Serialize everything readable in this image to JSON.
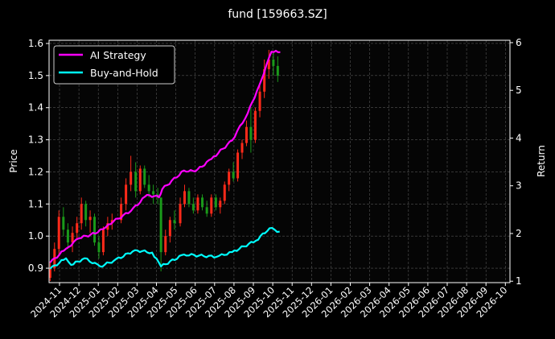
{
  "chart_data": {
    "type": "line",
    "title": "fund [159663.SZ]",
    "ylabel": "Price",
    "ylabel_right": "Return",
    "ylim": [
      0.855,
      1.61
    ],
    "ylim_right": [
      0.97,
      6.05
    ],
    "yticks": [
      "0.9",
      "1.0",
      "1.1",
      "1.2",
      "1.3",
      "1.4",
      "1.5",
      "1.6"
    ],
    "yticks_right": [
      "1",
      "2",
      "3",
      "4",
      "5",
      "6"
    ],
    "xticks": [
      "2024-11",
      "2024-12",
      "2025-01",
      "2025-02",
      "2025-03",
      "2025-04",
      "2025-05",
      "2025-06",
      "2025-07",
      "2025-08",
      "2025-09",
      "2025-10",
      "2025-11",
      "2025-12",
      "2026-01",
      "2026-02",
      "2026-03",
      "2026-04",
      "2026-05",
      "2026-06",
      "2026-07",
      "2026-08",
      "2026-09",
      "2026-10"
    ],
    "grid": true,
    "legend_position": "top-left",
    "colors": {
      "up": "#ff2a1a",
      "down": "#1a9a1a",
      "strategy": "#ff00ff",
      "buy_hold": "#00ffff",
      "grid": "#555555"
    },
    "candles": [
      [
        "2024-10-17",
        0.87,
        0.92,
        0.86,
        0.9
      ],
      [
        "2024-10-24",
        0.9,
        0.98,
        0.89,
        0.96
      ],
      [
        "2024-10-31",
        0.96,
        1.08,
        0.94,
        1.06
      ],
      [
        "2024-11-07",
        1.06,
        1.09,
        1.0,
        1.02
      ],
      [
        "2024-11-14",
        1.02,
        1.04,
        0.96,
        0.98
      ],
      [
        "2024-11-21",
        0.98,
        1.03,
        0.95,
        1.01
      ],
      [
        "2024-11-28",
        1.01,
        1.06,
        0.99,
        1.04
      ],
      [
        "2024-12-05",
        1.04,
        1.12,
        1.02,
        1.1
      ],
      [
        "2024-12-12",
        1.1,
        1.11,
        1.03,
        1.05
      ],
      [
        "2024-12-19",
        1.05,
        1.08,
        1.01,
        1.06
      ],
      [
        "2024-12-26",
        1.06,
        1.07,
        0.97,
        0.98
      ],
      [
        "2025-01-02",
        0.98,
        1.0,
        0.93,
        0.95
      ],
      [
        "2025-01-09",
        0.95,
        1.03,
        0.94,
        1.02
      ],
      [
        "2025-01-16",
        1.02,
        1.06,
        1.0,
        1.04
      ],
      [
        "2025-01-23",
        1.04,
        1.07,
        1.02,
        1.05
      ],
      [
        "2025-02-06",
        1.05,
        1.12,
        1.04,
        1.1
      ],
      [
        "2025-02-13",
        1.1,
        1.18,
        1.08,
        1.16
      ],
      [
        "2025-02-20",
        1.16,
        1.25,
        1.14,
        1.2
      ],
      [
        "2025-02-27",
        1.2,
        1.23,
        1.12,
        1.14
      ],
      [
        "2025-03-06",
        1.14,
        1.22,
        1.13,
        1.21
      ],
      [
        "2025-03-13",
        1.21,
        1.22,
        1.15,
        1.16
      ],
      [
        "2025-03-20",
        1.16,
        1.19,
        1.12,
        1.14
      ],
      [
        "2025-03-27",
        1.14,
        1.16,
        1.1,
        1.13
      ],
      [
        "2025-04-03",
        1.13,
        1.15,
        1.1,
        1.12
      ],
      [
        "2025-04-08",
        1.12,
        1.12,
        0.89,
        0.95
      ],
      [
        "2025-04-15",
        0.95,
        1.02,
        0.94,
        1.0
      ],
      [
        "2025-04-22",
        1.0,
        1.06,
        0.98,
        1.05
      ],
      [
        "2025-04-29",
        1.05,
        1.08,
        1.02,
        1.04
      ],
      [
        "2025-05-08",
        1.04,
        1.12,
        1.03,
        1.1
      ],
      [
        "2025-05-15",
        1.1,
        1.16,
        1.09,
        1.14
      ],
      [
        "2025-05-22",
        1.14,
        1.15,
        1.09,
        1.1
      ],
      [
        "2025-05-29",
        1.1,
        1.12,
        1.07,
        1.08
      ],
      [
        "2025-06-05",
        1.08,
        1.13,
        1.07,
        1.12
      ],
      [
        "2025-06-12",
        1.12,
        1.13,
        1.08,
        1.09
      ],
      [
        "2025-06-19",
        1.09,
        1.11,
        1.06,
        1.07
      ],
      [
        "2025-06-26",
        1.07,
        1.13,
        1.06,
        1.12
      ],
      [
        "2025-07-03",
        1.12,
        1.13,
        1.08,
        1.09
      ],
      [
        "2025-07-10",
        1.09,
        1.12,
        1.07,
        1.11
      ],
      [
        "2025-07-17",
        1.11,
        1.17,
        1.1,
        1.16
      ],
      [
        "2025-07-24",
        1.16,
        1.21,
        1.14,
        1.2
      ],
      [
        "2025-07-31",
        1.2,
        1.23,
        1.17,
        1.18
      ],
      [
        "2025-08-07",
        1.18,
        1.27,
        1.17,
        1.26
      ],
      [
        "2025-08-14",
        1.26,
        1.3,
        1.24,
        1.29
      ],
      [
        "2025-08-21",
        1.29,
        1.36,
        1.28,
        1.34
      ],
      [
        "2025-08-28",
        1.34,
        1.4,
        1.26,
        1.3
      ],
      [
        "2025-09-04",
        1.3,
        1.4,
        1.29,
        1.39
      ],
      [
        "2025-09-11",
        1.39,
        1.47,
        1.37,
        1.45
      ],
      [
        "2025-09-18",
        1.45,
        1.55,
        1.43,
        1.52
      ],
      [
        "2025-09-25",
        1.52,
        1.58,
        1.49,
        1.55
      ],
      [
        "2025-10-02",
        1.55,
        1.57,
        1.5,
        1.53
      ],
      [
        "2025-10-09",
        1.53,
        1.56,
        1.48,
        1.5
      ]
    ],
    "series": [
      {
        "name": "AI Strategy",
        "points": [
          [
            "2024-10-17",
            1.39
          ],
          [
            "2024-11-11",
            1.68
          ],
          [
            "2024-12-01",
            1.9
          ],
          [
            "2024-12-31",
            2.02
          ],
          [
            "2025-01-17",
            2.19
          ],
          [
            "2025-02-20",
            2.47
          ],
          [
            "2025-03-17",
            2.81
          ],
          [
            "2025-04-05",
            2.76
          ],
          [
            "2025-04-10",
            2.93
          ],
          [
            "2025-05-14",
            3.32
          ],
          [
            "2025-06-01",
            3.3
          ],
          [
            "2025-06-26",
            3.56
          ],
          [
            "2025-07-29",
            3.95
          ],
          [
            "2025-08-23",
            4.52
          ],
          [
            "2025-09-10",
            5.1
          ],
          [
            "2025-09-29",
            5.81
          ],
          [
            "2025-10-13",
            5.8
          ]
        ]
      },
      {
        "name": "Buy-and-Hold",
        "points": [
          [
            "2024-10-17",
            1.26
          ],
          [
            "2024-11-11",
            1.48
          ],
          [
            "2024-11-19",
            1.34
          ],
          [
            "2024-12-10",
            1.48
          ],
          [
            "2025-01-04",
            1.31
          ],
          [
            "2025-01-26",
            1.43
          ],
          [
            "2025-02-26",
            1.65
          ],
          [
            "2025-03-25",
            1.6
          ],
          [
            "2025-04-08",
            1.31
          ],
          [
            "2025-05-14",
            1.56
          ],
          [
            "2025-07-04",
            1.51
          ],
          [
            "2025-07-29",
            1.61
          ],
          [
            "2025-09-05",
            1.85
          ],
          [
            "2025-09-26",
            2.11
          ],
          [
            "2025-10-12",
            2.04
          ]
        ]
      }
    ]
  }
}
